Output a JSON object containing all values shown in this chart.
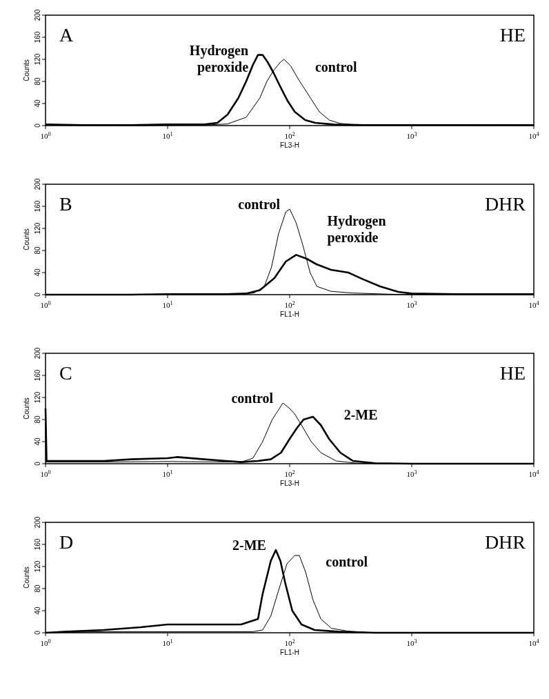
{
  "chart_data": [
    {
      "type": "line",
      "xlabel": "FL3-H",
      "ylabel": "Counts",
      "annotations": [
        "A",
        "HE"
      ],
      "log": "x",
      "xlim": [
        1,
        10000
      ],
      "ylim": [
        0,
        200
      ],
      "xticks": [
        {
          "value": 1,
          "label": "10$^{0}$"
        },
        {
          "value": 10,
          "label": "10$^{1}$"
        },
        {
          "value": 100,
          "label": "10$^{2}$"
        },
        {
          "value": 1000,
          "label": "10$^{3}$"
        },
        {
          "value": 10000,
          "label": "10$^{4}$"
        }
      ],
      "yticks": [
        0,
        40,
        80,
        120,
        160,
        200
      ],
      "marker": "none",
      "line_style": "solid",
      "legend": false,
      "grid": false,
      "series": [
        {
          "name": "Hydrogen peroxide",
          "color": "#000000",
          "x": [
            1,
            2,
            5,
            10,
            20,
            25.6,
            31,
            38,
            44,
            50,
            55,
            60,
            66,
            74,
            84,
            96,
            110,
            134,
            162,
            228,
            400,
            1000,
            10000
          ],
          "values": [
            2,
            1,
            1,
            2,
            2,
            5,
            20,
            50,
            80,
            110,
            128,
            128,
            115,
            95,
            70,
            45,
            25,
            10,
            5,
            2,
            1,
            1,
            1
          ]
        },
        {
          "name": "control",
          "color": "#000000",
          "x": [
            1,
            5,
            20,
            31,
            44,
            57,
            65,
            74,
            84,
            90,
            102,
            117,
            134,
            153,
            175,
            211,
            258,
            316,
            1000,
            10000
          ],
          "values": [
            1,
            0,
            1,
            3,
            15,
            50,
            80,
            100,
            115,
            120,
            108,
            85,
            65,
            45,
            25,
            10,
            4,
            2,
            1,
            0
          ]
        }
      ]
    },
    {
      "type": "line",
      "xlabel": "FL1-H",
      "ylabel": "Counts",
      "annotations": [
        "B",
        "DHR"
      ],
      "log": "x",
      "xlim": [
        1,
        10000
      ],
      "ylim": [
        0,
        200
      ],
      "xticks": [
        {
          "value": 1,
          "label": "10$^{0}$"
        },
        {
          "value": 10,
          "label": "10$^{1}$"
        },
        {
          "value": 100,
          "label": "10$^{2}$"
        },
        {
          "value": 1000,
          "label": "10$^{3}$"
        },
        {
          "value": 10000,
          "label": "10$^{4}$"
        }
      ],
      "yticks": [
        0,
        40,
        80,
        120,
        160,
        200
      ],
      "marker": "none",
      "line_style": "solid",
      "legend": false,
      "grid": false,
      "series": [
        {
          "name": "Hydrogen peroxide",
          "color": "#000000",
          "x": [
            1,
            5,
            10,
            30,
            44,
            57,
            75,
            93,
            113,
            138,
            166,
            218,
            302,
            398,
            549,
            776,
            1000,
            2300,
            10000
          ],
          "values": [
            0,
            0,
            1,
            1,
            2,
            8,
            30,
            60,
            72,
            65,
            55,
            45,
            40,
            28,
            15,
            5,
            2,
            1,
            1
          ]
        },
        {
          "name": "control",
          "color": "#000000",
          "x": [
            1,
            32,
            51,
            62,
            71,
            81,
            93,
            100,
            113,
            128,
            147,
            167,
            218,
            324,
            631,
            1000,
            10000
          ],
          "values": [
            0,
            0,
            3,
            15,
            50,
            110,
            150,
            155,
            130,
            90,
            40,
            15,
            6,
            3,
            1,
            0,
            0
          ]
        }
      ]
    },
    {
      "type": "line",
      "xlabel": "FL3-H",
      "ylabel": "Counts",
      "annotations": [
        "C",
        "HE"
      ],
      "log": "x",
      "xlim": [
        1,
        10000
      ],
      "ylim": [
        0,
        200
      ],
      "xticks": [
        {
          "value": 1,
          "label": "10$^{0}$"
        },
        {
          "value": 10,
          "label": "10$^{1}$"
        },
        {
          "value": 100,
          "label": "10$^{2}$"
        },
        {
          "value": 1000,
          "label": "10$^{3}$"
        },
        {
          "value": 10000,
          "label": "10$^{4}$"
        }
      ],
      "yticks": [
        0,
        40,
        80,
        120,
        160,
        200
      ],
      "marker": "none",
      "line_style": "solid",
      "legend": false,
      "grid": false,
      "series": [
        {
          "name": "2-ME",
          "color": "#000000",
          "x": [
            1,
            1.02,
            1.1,
            3,
            5,
            10,
            12,
            20,
            30,
            40,
            55,
            70,
            85,
            100,
            115,
            130,
            155,
            180,
            210,
            260,
            330,
            500,
            1000,
            10000
          ],
          "values": [
            100,
            5,
            5,
            5,
            8,
            10,
            12,
            8,
            5,
            3,
            5,
            8,
            20,
            45,
            65,
            80,
            85,
            70,
            45,
            20,
            5,
            1,
            0,
            0
          ]
        },
        {
          "name": "control",
          "color": "#000000",
          "x": [
            1,
            3,
            10,
            30,
            40,
            50,
            60,
            72,
            88,
            100,
            110,
            125,
            150,
            180,
            240,
            350,
            1000,
            10000
          ],
          "values": [
            3,
            3,
            4,
            3,
            3,
            10,
            40,
            80,
            110,
            100,
            90,
            70,
            40,
            20,
            5,
            1,
            0,
            0
          ]
        }
      ]
    },
    {
      "type": "line",
      "xlabel": "FL1-H",
      "ylabel": "Counts",
      "annotations": [
        "D",
        "DHR"
      ],
      "log": "x",
      "xlim": [
        1,
        10000
      ],
      "ylim": [
        0,
        200
      ],
      "xticks": [
        {
          "value": 1,
          "label": "10$^{0}$"
        },
        {
          "value": 10,
          "label": "10$^{1}$"
        },
        {
          "value": 100,
          "label": "10$^{2}$"
        },
        {
          "value": 1000,
          "label": "10$^{3}$"
        },
        {
          "value": 10000,
          "label": "10$^{4}$"
        }
      ],
      "yticks": [
        0,
        40,
        80,
        120,
        160,
        200
      ],
      "marker": "none",
      "line_style": "solid",
      "legend": false,
      "grid": false,
      "series": [
        {
          "name": "2-ME",
          "color": "#000000",
          "x": [
            1,
            1.5,
            3,
            6,
            10,
            15,
            25,
            40,
            55,
            60,
            70,
            77,
            84,
            92,
            105,
            125,
            160,
            250,
            500,
            10000
          ],
          "values": [
            0,
            2,
            5,
            10,
            15,
            15,
            15,
            15,
            25,
            70,
            130,
            150,
            130,
            90,
            40,
            15,
            5,
            2,
            0,
            0
          ]
        },
        {
          "name": "control",
          "color": "#000000",
          "x": [
            1,
            3,
            10,
            50,
            60,
            70,
            82,
            95,
            110,
            120,
            135,
            155,
            180,
            220,
            300,
            500,
            10000
          ],
          "values": [
            0,
            2,
            2,
            2,
            5,
            30,
            80,
            125,
            140,
            140,
            110,
            60,
            25,
            8,
            3,
            0,
            0
          ]
        }
      ]
    }
  ]
}
